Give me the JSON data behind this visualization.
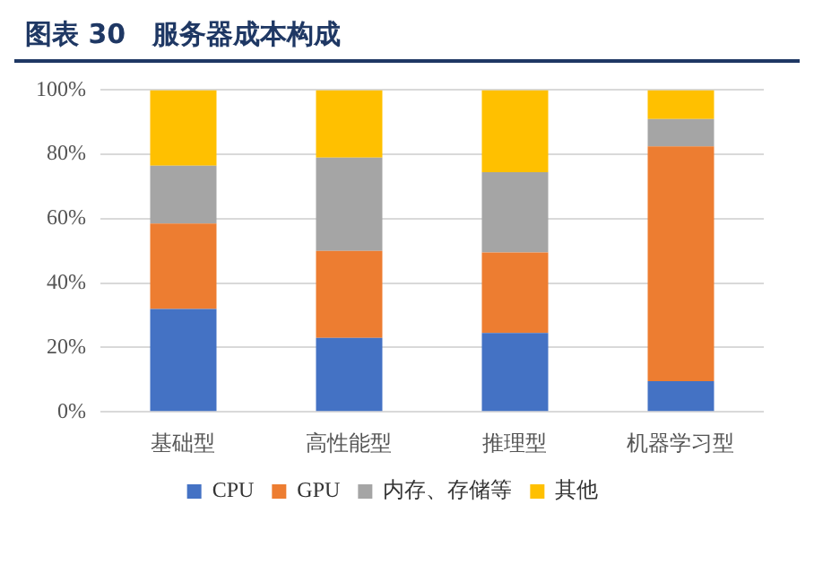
{
  "chart_data": {
    "type": "bar",
    "title": "图表 30　服务器成本构成",
    "stacked": true,
    "categories": [
      "基础型",
      "高性能型",
      "推理型",
      "机器学习型"
    ],
    "series": [
      {
        "name": "CPU",
        "color": "#4472c4",
        "values": [
          32,
          23,
          24.5,
          9.5
        ]
      },
      {
        "name": "GPU",
        "color": "#ed7d31",
        "values": [
          26.5,
          27,
          25,
          73
        ]
      },
      {
        "name": "内存、存储等",
        "color": "#a5a5a5",
        "values": [
          18,
          29,
          25,
          8.5
        ]
      },
      {
        "name": "其他",
        "color": "#ffc000",
        "values": [
          23.5,
          21,
          25.5,
          9
        ]
      }
    ],
    "ylim": [
      0,
      100
    ],
    "yticks": [
      {
        "value": 0,
        "label": "0%"
      },
      {
        "value": 20,
        "label": "20%"
      },
      {
        "value": 40,
        "label": "40%"
      },
      {
        "value": 60,
        "label": "60%"
      },
      {
        "value": 80,
        "label": "80%"
      },
      {
        "value": 100,
        "label": "100%"
      }
    ],
    "grid": "y",
    "legend": "bottom"
  }
}
